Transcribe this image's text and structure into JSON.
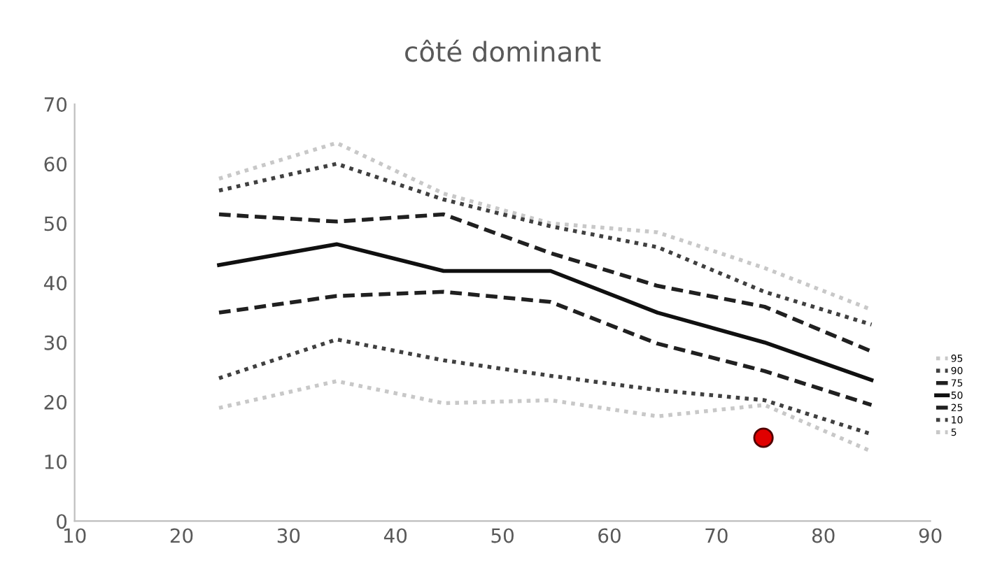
{
  "chart_data": {
    "type": "line",
    "title": "côté dominant",
    "xlim": [
      10,
      90
    ],
    "xticks": [
      10,
      20,
      30,
      40,
      50,
      60,
      70,
      80,
      90
    ],
    "ylim": [
      0,
      70
    ],
    "yticks": [
      0,
      10,
      20,
      30,
      40,
      50,
      60,
      70
    ],
    "grid": false,
    "legend": "right",
    "marker": "none",
    "series": [
      {
        "name": "95",
        "color": "#c8c8c8",
        "line_style": "dotted",
        "x": [
          23.5,
          34.5,
          44.5,
          54.5,
          64.5,
          74.5,
          84.5
        ],
        "values": [
          57.5,
          63.5,
          55,
          50,
          48.5,
          42.5,
          35.5
        ]
      },
      {
        "name": "90",
        "color": "#404040",
        "line_style": "dotted",
        "x": [
          23.5,
          34.5,
          44.5,
          54.5,
          64.5,
          74.5,
          84.5
        ],
        "values": [
          55.5,
          60,
          54,
          49.5,
          46,
          38.5,
          33
        ]
      },
      {
        "name": "75",
        "color": "#202020",
        "line_style": "dashed",
        "x": [
          23.5,
          34.5,
          44.5,
          54.5,
          64.5,
          74.5,
          84.5
        ],
        "values": [
          51.5,
          50.3,
          51.5,
          45,
          39.5,
          36,
          28.5
        ]
      },
      {
        "name": "50",
        "color": "#101010",
        "line_style": "solid",
        "x": [
          23.5,
          34.5,
          44.5,
          54.5,
          64.5,
          74.5,
          84.5
        ],
        "values": [
          43,
          46.5,
          42,
          42,
          35,
          30,
          23.7
        ]
      },
      {
        "name": "25",
        "color": "#202020",
        "line_style": "dashed",
        "x": [
          23.5,
          34.5,
          44.5,
          54.5,
          64.5,
          74.5,
          84.5
        ],
        "values": [
          35,
          37.8,
          38.5,
          36.8,
          29.8,
          25.2,
          19.5
        ]
      },
      {
        "name": "10",
        "color": "#404040",
        "line_style": "dotted",
        "x": [
          23.5,
          34.5,
          44.5,
          54.5,
          64.5,
          74.5,
          84.5
        ],
        "values": [
          24,
          30.5,
          27,
          24.4,
          22,
          20.3,
          14.6
        ]
      },
      {
        "name": "5",
        "color": "#c8c8c8",
        "line_style": "dotted",
        "x": [
          23.5,
          34.5,
          44.5,
          54.5,
          64.5,
          74.5,
          84.5
        ],
        "values": [
          19,
          23.5,
          19.8,
          20.3,
          17.6,
          19.5,
          11.7
        ]
      },
      {
        "type": "scatter",
        "color": "#e00000",
        "marker": "circle",
        "x": [
          74.4
        ],
        "values": [
          14
        ]
      }
    ]
  }
}
